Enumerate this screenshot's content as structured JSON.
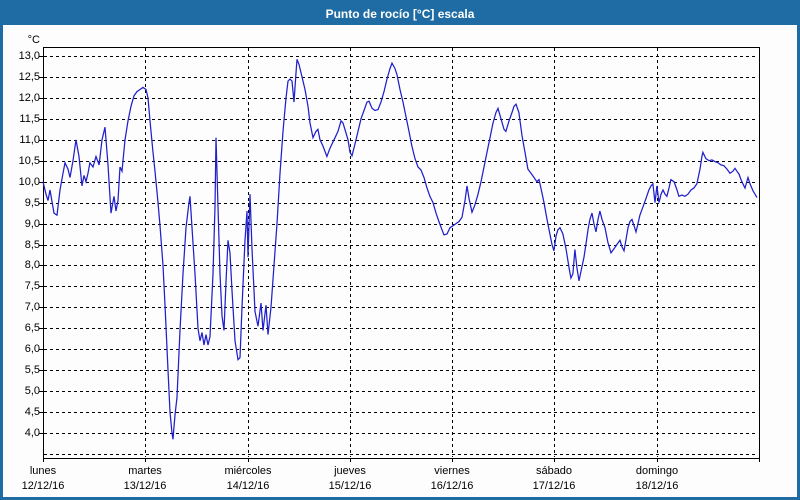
{
  "window": {
    "title": "Punto de rocío [°C] escala"
  },
  "colors": {
    "frame": "#1e6ca3",
    "titlebar_bg": "#1e6ca3",
    "titlebar_text": "#ffffff",
    "plot_bg": "#ffffff",
    "grid": "#000000",
    "axis": "#000000",
    "line": "#2020cc"
  },
  "chart_data": {
    "type": "line",
    "title": "Punto de rocío [°C] escala",
    "unit_label": "°C",
    "ylabel": "°C",
    "xlabel": "",
    "ylim": [
      3.5,
      13.0
    ],
    "ytick_values": [
      13.0,
      12.5,
      12.0,
      11.5,
      11.0,
      10.5,
      10.0,
      9.5,
      9.0,
      8.5,
      8.0,
      7.5,
      7.0,
      6.5,
      6.0,
      5.5,
      5.0,
      4.5,
      4.0
    ],
    "ytick_labels": [
      "13,0",
      "12,5",
      "12,0",
      "11,5",
      "11,0",
      "10,5",
      "10,0",
      "9,5",
      "9,0",
      "8,5",
      "8,0",
      "7,5",
      "7,0",
      "6,5",
      "6,0",
      "5,5",
      "5,0",
      "4,5",
      "4,0"
    ],
    "grid": "dashed",
    "legend_position": "none",
    "x_axis_days": [
      {
        "weekday": "lunes",
        "date": "12/12/16"
      },
      {
        "weekday": "martes",
        "date": "13/12/16"
      },
      {
        "weekday": "miércoles",
        "date": "14/12/16"
      },
      {
        "weekday": "jueves",
        "date": "15/12/16"
      },
      {
        "weekday": "viernes",
        "date": "16/12/16"
      },
      {
        "weekday": "sábado",
        "date": "17/12/16"
      },
      {
        "weekday": "domingo",
        "date": "18/12/16"
      }
    ],
    "series": [
      {
        "name": "Punto de rocío",
        "color": "#2020cc",
        "x_unit": "days_since_2016-12-12",
        "points": [
          [
            0.0,
            10.0
          ],
          [
            0.029,
            9.7
          ],
          [
            0.049,
            9.55
          ],
          [
            0.068,
            9.8
          ],
          [
            0.108,
            9.25
          ],
          [
            0.137,
            9.2
          ],
          [
            0.166,
            9.8
          ],
          [
            0.196,
            10.2
          ],
          [
            0.215,
            10.45
          ],
          [
            0.244,
            10.3
          ],
          [
            0.264,
            10.1
          ],
          [
            0.293,
            10.5
          ],
          [
            0.323,
            11.0
          ],
          [
            0.352,
            10.6
          ],
          [
            0.381,
            9.9
          ],
          [
            0.401,
            10.15
          ],
          [
            0.42,
            10.0
          ],
          [
            0.44,
            10.2
          ],
          [
            0.459,
            10.45
          ],
          [
            0.489,
            10.35
          ],
          [
            0.518,
            10.6
          ],
          [
            0.548,
            10.4
          ],
          [
            0.577,
            11.0
          ],
          [
            0.606,
            11.3
          ],
          [
            0.635,
            10.4
          ],
          [
            0.665,
            9.25
          ],
          [
            0.694,
            9.65
          ],
          [
            0.714,
            9.3
          ],
          [
            0.733,
            9.55
          ],
          [
            0.753,
            10.35
          ],
          [
            0.772,
            10.25
          ],
          [
            0.802,
            11.0
          ],
          [
            0.831,
            11.45
          ],
          [
            0.86,
            11.8
          ],
          [
            0.89,
            12.05
          ],
          [
            0.919,
            12.15
          ],
          [
            0.948,
            12.2
          ],
          [
            0.978,
            12.25
          ],
          [
            1.007,
            12.2
          ],
          [
            1.027,
            12.0
          ],
          [
            1.046,
            11.45
          ],
          [
            1.075,
            10.7
          ],
          [
            1.095,
            10.25
          ],
          [
            1.124,
            9.5
          ],
          [
            1.144,
            8.95
          ],
          [
            1.173,
            8.0
          ],
          [
            1.193,
            7.05
          ],
          [
            1.222,
            5.5
          ],
          [
            1.242,
            4.5
          ],
          [
            1.261,
            4.0
          ],
          [
            1.271,
            3.85
          ],
          [
            1.281,
            4.15
          ],
          [
            1.291,
            4.45
          ],
          [
            1.31,
            4.85
          ],
          [
            1.339,
            6.45
          ],
          [
            1.369,
            7.8
          ],
          [
            1.398,
            8.9
          ],
          [
            1.427,
            9.5
          ],
          [
            1.437,
            9.65
          ],
          [
            1.457,
            8.9
          ],
          [
            1.486,
            7.8
          ],
          [
            1.515,
            6.5
          ],
          [
            1.535,
            6.2
          ],
          [
            1.554,
            6.4
          ],
          [
            1.574,
            6.1
          ],
          [
            1.594,
            6.35
          ],
          [
            1.613,
            6.1
          ],
          [
            1.633,
            6.3
          ],
          [
            1.662,
            7.8
          ],
          [
            1.682,
            9.4
          ],
          [
            1.691,
            11.05
          ],
          [
            1.711,
            9.4
          ],
          [
            1.73,
            7.8
          ],
          [
            1.75,
            6.8
          ],
          [
            1.77,
            6.45
          ],
          [
            1.789,
            7.6
          ],
          [
            1.809,
            8.6
          ],
          [
            1.828,
            8.3
          ],
          [
            1.848,
            7.4
          ],
          [
            1.877,
            6.2
          ],
          [
            1.906,
            5.75
          ],
          [
            1.926,
            5.8
          ],
          [
            1.946,
            7.0
          ],
          [
            1.975,
            8.6
          ],
          [
            1.994,
            9.3
          ],
          [
            2.004,
            8.2
          ],
          [
            2.024,
            9.7
          ],
          [
            2.043,
            8.4
          ],
          [
            2.073,
            6.9
          ],
          [
            2.102,
            6.55
          ],
          [
            2.131,
            7.1
          ],
          [
            2.151,
            6.45
          ],
          [
            2.18,
            7.05
          ],
          [
            2.2,
            6.35
          ],
          [
            2.229,
            7.0
          ],
          [
            2.258,
            8.0
          ],
          [
            2.288,
            9.0
          ],
          [
            2.317,
            10.2
          ],
          [
            2.346,
            11.2
          ],
          [
            2.376,
            12.0
          ],
          [
            2.395,
            12.4
          ],
          [
            2.415,
            12.45
          ],
          [
            2.434,
            12.4
          ],
          [
            2.454,
            11.9
          ],
          [
            2.473,
            12.6
          ],
          [
            2.483,
            12.92
          ],
          [
            2.503,
            12.8
          ],
          [
            2.532,
            12.5
          ],
          [
            2.561,
            12.2
          ],
          [
            2.591,
            11.8
          ],
          [
            2.61,
            11.4
          ],
          [
            2.64,
            11.05
          ],
          [
            2.669,
            11.2
          ],
          [
            2.688,
            11.25
          ],
          [
            2.708,
            11.0
          ],
          [
            2.737,
            10.85
          ],
          [
            2.776,
            10.6
          ],
          [
            2.806,
            10.8
          ],
          [
            2.845,
            11.0
          ],
          [
            2.884,
            11.2
          ],
          [
            2.913,
            11.45
          ],
          [
            2.933,
            11.4
          ],
          [
            2.952,
            11.25
          ],
          [
            2.982,
            11.0
          ],
          [
            3.001,
            10.7
          ],
          [
            3.021,
            10.62
          ],
          [
            3.05,
            10.9
          ],
          [
            3.08,
            11.2
          ],
          [
            3.109,
            11.5
          ],
          [
            3.138,
            11.7
          ],
          [
            3.168,
            11.9
          ],
          [
            3.187,
            11.92
          ],
          [
            3.217,
            11.75
          ],
          [
            3.246,
            11.7
          ],
          [
            3.275,
            11.72
          ],
          [
            3.304,
            11.9
          ],
          [
            3.334,
            12.15
          ],
          [
            3.363,
            12.45
          ],
          [
            3.392,
            12.7
          ],
          [
            3.412,
            12.83
          ],
          [
            3.441,
            12.7
          ],
          [
            3.461,
            12.55
          ],
          [
            3.49,
            12.2
          ],
          [
            3.52,
            11.9
          ],
          [
            3.549,
            11.55
          ],
          [
            3.578,
            11.2
          ],
          [
            3.607,
            10.85
          ],
          [
            3.637,
            10.55
          ],
          [
            3.666,
            10.35
          ],
          [
            3.695,
            10.28
          ],
          [
            3.725,
            10.1
          ],
          [
            3.754,
            9.85
          ],
          [
            3.783,
            9.65
          ],
          [
            3.813,
            9.5
          ],
          [
            3.842,
            9.25
          ],
          [
            3.871,
            9.05
          ],
          [
            3.901,
            8.85
          ],
          [
            3.92,
            8.73
          ],
          [
            3.95,
            8.75
          ],
          [
            3.979,
            8.9
          ],
          [
            4.008,
            8.95
          ],
          [
            4.038,
            9.0
          ],
          [
            4.067,
            9.05
          ],
          [
            4.096,
            9.15
          ],
          [
            4.126,
            9.55
          ],
          [
            4.145,
            9.9
          ],
          [
            4.165,
            9.6
          ],
          [
            4.194,
            9.27
          ],
          [
            4.223,
            9.45
          ],
          [
            4.253,
            9.7
          ],
          [
            4.282,
            10.0
          ],
          [
            4.311,
            10.35
          ],
          [
            4.341,
            10.7
          ],
          [
            4.37,
            11.05
          ],
          [
            4.399,
            11.4
          ],
          [
            4.429,
            11.65
          ],
          [
            4.448,
            11.75
          ],
          [
            4.478,
            11.5
          ],
          [
            4.507,
            11.25
          ],
          [
            4.526,
            11.2
          ],
          [
            4.556,
            11.45
          ],
          [
            4.585,
            11.65
          ],
          [
            4.605,
            11.8
          ],
          [
            4.624,
            11.85
          ],
          [
            4.653,
            11.65
          ],
          [
            4.683,
            11.1
          ],
          [
            4.712,
            10.7
          ],
          [
            4.741,
            10.3
          ],
          [
            4.771,
            10.2
          ],
          [
            4.8,
            10.1
          ],
          [
            4.829,
            10.0
          ],
          [
            4.849,
            10.05
          ],
          [
            4.868,
            9.85
          ],
          [
            4.898,
            9.5
          ],
          [
            4.927,
            9.1
          ],
          [
            4.956,
            8.75
          ],
          [
            4.976,
            8.5
          ],
          [
            4.995,
            8.35
          ],
          [
            5.015,
            8.7
          ],
          [
            5.034,
            8.85
          ],
          [
            5.054,
            8.9
          ],
          [
            5.083,
            8.75
          ],
          [
            5.113,
            8.4
          ],
          [
            5.142,
            7.95
          ],
          [
            5.161,
            7.7
          ],
          [
            5.181,
            7.8
          ],
          [
            5.2,
            8.38
          ],
          [
            5.22,
            7.95
          ],
          [
            5.24,
            7.63
          ],
          [
            5.259,
            7.85
          ],
          [
            5.289,
            8.2
          ],
          [
            5.308,
            8.5
          ],
          [
            5.328,
            8.85
          ],
          [
            5.347,
            9.1
          ],
          [
            5.367,
            9.25
          ],
          [
            5.386,
            9.0
          ],
          [
            5.406,
            8.8
          ],
          [
            5.426,
            9.1
          ],
          [
            5.445,
            9.3
          ],
          [
            5.465,
            9.1
          ],
          [
            5.494,
            8.9
          ],
          [
            5.523,
            8.55
          ],
          [
            5.553,
            8.3
          ],
          [
            5.582,
            8.4
          ],
          [
            5.611,
            8.5
          ],
          [
            5.641,
            8.6
          ],
          [
            5.66,
            8.45
          ],
          [
            5.68,
            8.35
          ],
          [
            5.699,
            8.6
          ],
          [
            5.719,
            8.9
          ],
          [
            5.739,
            9.05
          ],
          [
            5.758,
            9.1
          ],
          [
            5.778,
            8.95
          ],
          [
            5.797,
            8.8
          ],
          [
            5.817,
            9.0
          ],
          [
            5.836,
            9.2
          ],
          [
            5.866,
            9.4
          ],
          [
            5.895,
            9.6
          ],
          [
            5.924,
            9.8
          ],
          [
            5.944,
            9.9
          ],
          [
            5.963,
            9.95
          ],
          [
            5.983,
            9.5
          ],
          [
            6.002,
            9.9
          ],
          [
            6.022,
            9.5
          ],
          [
            6.042,
            9.7
          ],
          [
            6.061,
            9.8
          ],
          [
            6.081,
            9.7
          ],
          [
            6.1,
            9.65
          ],
          [
            6.12,
            9.85
          ],
          [
            6.139,
            10.05
          ],
          [
            6.169,
            10.0
          ],
          [
            6.198,
            9.8
          ],
          [
            6.217,
            9.65
          ],
          [
            6.247,
            9.68
          ],
          [
            6.276,
            9.65
          ],
          [
            6.305,
            9.7
          ],
          [
            6.335,
            9.8
          ],
          [
            6.364,
            9.85
          ],
          [
            6.393,
            9.95
          ],
          [
            6.423,
            10.3
          ],
          [
            6.442,
            10.6
          ],
          [
            6.452,
            10.7
          ],
          [
            6.481,
            10.55
          ],
          [
            6.511,
            10.5
          ],
          [
            6.54,
            10.52
          ],
          [
            6.569,
            10.48
          ],
          [
            6.599,
            10.45
          ],
          [
            6.628,
            10.4
          ],
          [
            6.657,
            10.38
          ],
          [
            6.687,
            10.3
          ],
          [
            6.716,
            10.2
          ],
          [
            6.745,
            10.25
          ],
          [
            6.765,
            10.32
          ],
          [
            6.784,
            10.25
          ],
          [
            6.804,
            10.18
          ],
          [
            6.824,
            10.05
          ],
          [
            6.843,
            9.95
          ],
          [
            6.863,
            9.85
          ],
          [
            6.892,
            10.1
          ],
          [
            6.912,
            9.95
          ],
          [
            6.941,
            9.78
          ],
          [
            6.961,
            9.7
          ],
          [
            6.98,
            9.62
          ]
        ]
      }
    ]
  }
}
